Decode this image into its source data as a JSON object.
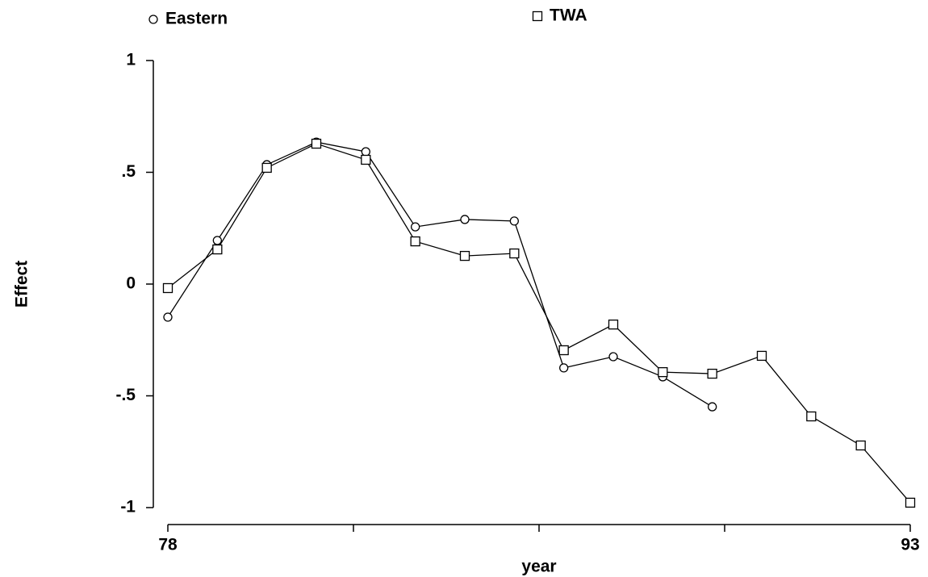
{
  "chart_data": {
    "type": "line",
    "xlabel": "year",
    "ylabel": "Effect",
    "xlim": [
      78,
      93
    ],
    "xticks": [
      78,
      93
    ],
    "xminor_ticks": [
      81.75,
      85.5,
      89.25
    ],
    "ylim": [
      -1,
      1
    ],
    "yticks": [
      -1,
      {
        "value": -0.5,
        "label": "-.5"
      },
      0,
      {
        "value": 0.5,
        "label": ".5"
      },
      1
    ],
    "series": [
      {
        "name": "Eastern",
        "color": "#000000",
        "marker": "circle",
        "x": [
          78,
          79,
          80,
          81,
          82,
          83,
          84,
          85,
          86,
          87,
          88,
          89
        ],
        "values": [
          -0.148,
          0.195,
          0.534,
          0.635,
          0.592,
          0.256,
          0.289,
          0.282,
          -0.375,
          -0.325,
          -0.415,
          -0.549
        ]
      },
      {
        "name": "TWA",
        "color": "#000000",
        "marker": "square",
        "x": [
          78,
          79,
          80,
          81,
          82,
          83,
          84,
          85,
          86,
          87,
          88,
          89,
          90,
          91,
          92,
          93
        ],
        "values": [
          -0.018,
          0.155,
          0.52,
          0.628,
          0.556,
          0.191,
          0.126,
          0.137,
          -0.296,
          -0.181,
          -0.394,
          -0.401,
          -0.321,
          -0.592,
          -0.722,
          -0.978
        ]
      }
    ]
  }
}
